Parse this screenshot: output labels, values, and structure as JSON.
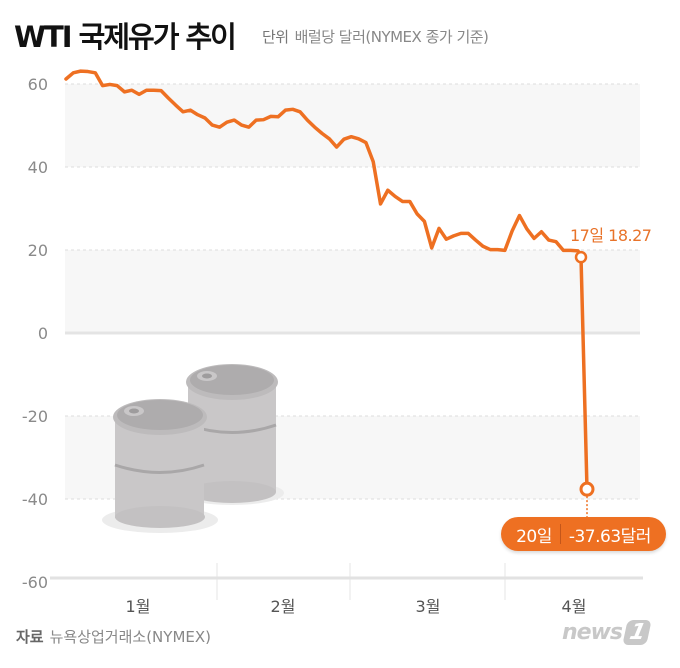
{
  "header": {
    "title": "WTI 국제유가 추이",
    "unit_label": "단위",
    "unit_text": "배럴당 달러(NYMEX 종가 기준)"
  },
  "annotations": {
    "last_positive": "17일 18.27",
    "negative_day": "20일",
    "negative_value": "-37.63달러"
  },
  "footer": {
    "source_label": "자료",
    "source_text": "뉴욕상업거래소(NYMEX)",
    "logo_text": "news",
    "logo_mark": "1"
  },
  "colors": {
    "line": "#ee7022",
    "band": "#f7f7f7",
    "grid": "#dddddd"
  },
  "chart_data": {
    "type": "line",
    "title": "WTI 국제유가 추이",
    "subtitle": "단위 배럴당 달러(NYMEX 종가 기준)",
    "xlabel": "",
    "ylabel": "배럴당 달러",
    "ylim": [
      -60,
      60
    ],
    "yticks": [
      60,
      40,
      20,
      0,
      -20,
      -40,
      -60
    ],
    "categories": [
      "1월",
      "2월",
      "3월",
      "4월"
    ],
    "grid": true,
    "series": [
      {
        "name": "WTI",
        "values": [
          61.2,
          62.7,
          63.1,
          63.0,
          62.7,
          59.6,
          59.9,
          59.6,
          58.1,
          58.5,
          57.5,
          58.5,
          58.5,
          58.4,
          56.6,
          54.9,
          53.3,
          53.7,
          52.6,
          51.8,
          50.1,
          49.6,
          50.8,
          51.3,
          50.1,
          49.6,
          51.3,
          51.4,
          52.2,
          52.1,
          53.7,
          53.9,
          53.3,
          51.3,
          49.6,
          48.1,
          46.8,
          44.8,
          46.7,
          47.3,
          46.8,
          45.9,
          41.3,
          31.1,
          34.4,
          32.9,
          31.7,
          31.7,
          28.7,
          26.9,
          20.5,
          25.2,
          22.6,
          23.4,
          24.0,
          24.0,
          22.4,
          20.9,
          20.1,
          20.1,
          19.9,
          24.6,
          28.3,
          25.1,
          22.8,
          24.4,
          22.4,
          22.0,
          19.9,
          19.9,
          19.8,
          18.27,
          -37.63
        ]
      }
    ],
    "highlights": [
      {
        "label": "17일",
        "value": 18.27
      },
      {
        "label": "20일",
        "value": -37.63
      }
    ]
  }
}
